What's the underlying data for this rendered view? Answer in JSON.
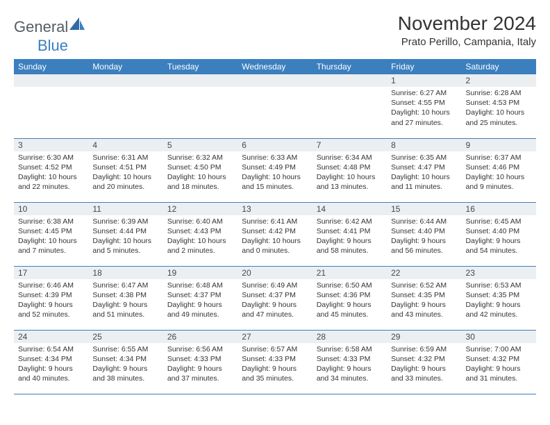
{
  "logo": {
    "general": "General",
    "blue": "Blue"
  },
  "title": "November 2024",
  "location": "Prato Perillo, Campania, Italy",
  "headers": [
    "Sunday",
    "Monday",
    "Tuesday",
    "Wednesday",
    "Thursday",
    "Friday",
    "Saturday"
  ],
  "colors": {
    "header_bg": "#3b7fbf",
    "daynum_bg": "#eceff1",
    "row_border": "#3b7fbf"
  },
  "weeks": [
    [
      null,
      null,
      null,
      null,
      null,
      {
        "n": "1",
        "sr": "6:27 AM",
        "ss": "4:55 PM",
        "dl": "10 hours and 27 minutes."
      },
      {
        "n": "2",
        "sr": "6:28 AM",
        "ss": "4:53 PM",
        "dl": "10 hours and 25 minutes."
      }
    ],
    [
      {
        "n": "3",
        "sr": "6:30 AM",
        "ss": "4:52 PM",
        "dl": "10 hours and 22 minutes."
      },
      {
        "n": "4",
        "sr": "6:31 AM",
        "ss": "4:51 PM",
        "dl": "10 hours and 20 minutes."
      },
      {
        "n": "5",
        "sr": "6:32 AM",
        "ss": "4:50 PM",
        "dl": "10 hours and 18 minutes."
      },
      {
        "n": "6",
        "sr": "6:33 AM",
        "ss": "4:49 PM",
        "dl": "10 hours and 15 minutes."
      },
      {
        "n": "7",
        "sr": "6:34 AM",
        "ss": "4:48 PM",
        "dl": "10 hours and 13 minutes."
      },
      {
        "n": "8",
        "sr": "6:35 AM",
        "ss": "4:47 PM",
        "dl": "10 hours and 11 minutes."
      },
      {
        "n": "9",
        "sr": "6:37 AM",
        "ss": "4:46 PM",
        "dl": "10 hours and 9 minutes."
      }
    ],
    [
      {
        "n": "10",
        "sr": "6:38 AM",
        "ss": "4:45 PM",
        "dl": "10 hours and 7 minutes."
      },
      {
        "n": "11",
        "sr": "6:39 AM",
        "ss": "4:44 PM",
        "dl": "10 hours and 5 minutes."
      },
      {
        "n": "12",
        "sr": "6:40 AM",
        "ss": "4:43 PM",
        "dl": "10 hours and 2 minutes."
      },
      {
        "n": "13",
        "sr": "6:41 AM",
        "ss": "4:42 PM",
        "dl": "10 hours and 0 minutes."
      },
      {
        "n": "14",
        "sr": "6:42 AM",
        "ss": "4:41 PM",
        "dl": "9 hours and 58 minutes."
      },
      {
        "n": "15",
        "sr": "6:44 AM",
        "ss": "4:40 PM",
        "dl": "9 hours and 56 minutes."
      },
      {
        "n": "16",
        "sr": "6:45 AM",
        "ss": "4:40 PM",
        "dl": "9 hours and 54 minutes."
      }
    ],
    [
      {
        "n": "17",
        "sr": "6:46 AM",
        "ss": "4:39 PM",
        "dl": "9 hours and 52 minutes."
      },
      {
        "n": "18",
        "sr": "6:47 AM",
        "ss": "4:38 PM",
        "dl": "9 hours and 51 minutes."
      },
      {
        "n": "19",
        "sr": "6:48 AM",
        "ss": "4:37 PM",
        "dl": "9 hours and 49 minutes."
      },
      {
        "n": "20",
        "sr": "6:49 AM",
        "ss": "4:37 PM",
        "dl": "9 hours and 47 minutes."
      },
      {
        "n": "21",
        "sr": "6:50 AM",
        "ss": "4:36 PM",
        "dl": "9 hours and 45 minutes."
      },
      {
        "n": "22",
        "sr": "6:52 AM",
        "ss": "4:35 PM",
        "dl": "9 hours and 43 minutes."
      },
      {
        "n": "23",
        "sr": "6:53 AM",
        "ss": "4:35 PM",
        "dl": "9 hours and 42 minutes."
      }
    ],
    [
      {
        "n": "24",
        "sr": "6:54 AM",
        "ss": "4:34 PM",
        "dl": "9 hours and 40 minutes."
      },
      {
        "n": "25",
        "sr": "6:55 AM",
        "ss": "4:34 PM",
        "dl": "9 hours and 38 minutes."
      },
      {
        "n": "26",
        "sr": "6:56 AM",
        "ss": "4:33 PM",
        "dl": "9 hours and 37 minutes."
      },
      {
        "n": "27",
        "sr": "6:57 AM",
        "ss": "4:33 PM",
        "dl": "9 hours and 35 minutes."
      },
      {
        "n": "28",
        "sr": "6:58 AM",
        "ss": "4:33 PM",
        "dl": "9 hours and 34 minutes."
      },
      {
        "n": "29",
        "sr": "6:59 AM",
        "ss": "4:32 PM",
        "dl": "9 hours and 33 minutes."
      },
      {
        "n": "30",
        "sr": "7:00 AM",
        "ss": "4:32 PM",
        "dl": "9 hours and 31 minutes."
      }
    ]
  ],
  "labels": {
    "sunrise": "Sunrise: ",
    "sunset": "Sunset: ",
    "daylight": "Daylight: "
  }
}
